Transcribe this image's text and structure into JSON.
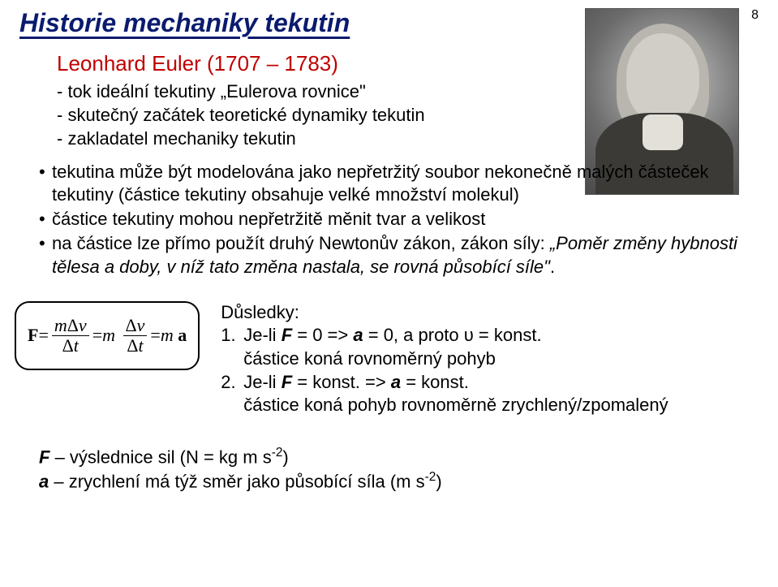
{
  "colors": {
    "title": "#0a1b6e",
    "subtitle": "#c00000"
  },
  "fontsizes": {
    "title": 32,
    "subtitle": 26,
    "body": 22,
    "pagenum": 16,
    "formula": 22
  },
  "page_number": "8",
  "title": "Historie mechaniky tekutin",
  "subtitle": "Leonhard Euler (1707 – 1783)",
  "dash_items": [
    "- tok ideální tekutiny „Eulerova rovnice\"",
    "- skutečný začátek teoretické dynamiky tekutin",
    "- zakladatel mechaniky tekutin"
  ],
  "bullet1": "tekutina může být modelována jako nepřetržitý soubor nekonečně malých částeček tekutiny (částice tekutiny obsahuje velké množství molekul)",
  "bullet2": "částice tekutiny mohou nepřetržitě měnit tvar a velikost",
  "bullet3_a": "na částice lze přímo použít druhý Newtonův zákon, zákon síly: ",
  "bullet3_b": "„Poměr změny hybnosti tělesa a doby, v níž tato změna nastala, se rovná působící síle\"",
  "bullet3_c": ".",
  "formula": {
    "F": "F",
    "m": "m",
    "dv_sym": "Δ",
    "v": "v",
    "t": "t",
    "a": "a",
    "eq": " = "
  },
  "conseq_title": "Důsledky:",
  "c1_num": "1.",
  "c1_a": "Je-li ",
  "c1_F": "F",
  "c1_b": " = 0 => ",
  "c1_a2": "a",
  "c1_c": " = 0, a proto ",
  "c1_u": "υ",
  "c1_d": " = konst.",
  "c1_sub": "částice koná rovnoměrný pohyb",
  "c2_num": "2.",
  "c2_a": "Je-li ",
  "c2_F": "F",
  "c2_b": " = konst. => ",
  "c2_a2": "a",
  "c2_c": " = konst.",
  "c2_sub": "částice koná pohyb rovnoměrně zrychlený/zpomalený",
  "foot1_a": "F",
  "foot1_b": " – výslednice sil (N = kg m s",
  "foot1_c": "-2",
  "foot1_d": ")",
  "foot2_a": "a",
  "foot2_b": " – zrychlení má týž směr jako působící síla (m s",
  "foot2_c": "-2",
  "foot2_d": ")"
}
